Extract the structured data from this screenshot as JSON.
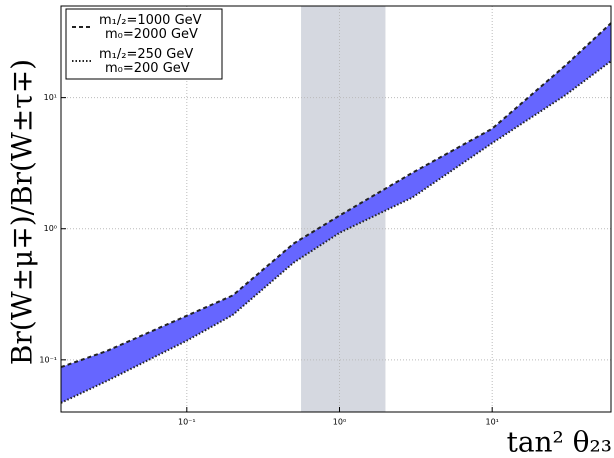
{
  "chart_data": {
    "type": "band",
    "xlabel": "tan² θ₂₃",
    "ylabel": "Br(W±μ∓)/Br(W±τ∓)",
    "x": [
      0.015,
      0.03,
      0.1,
      0.2,
      0.5,
      1,
      3,
      10,
      30,
      60
    ],
    "series": [
      {
        "name": "m₁/₂=1000 GeV\nm₀=2000 GeV",
        "style": "dashed",
        "color": "#222222",
        "values": [
          0.088,
          0.117,
          0.217,
          0.31,
          0.77,
          1.26,
          2.67,
          5.8,
          17.5,
          37
        ]
      },
      {
        "name": "m₁/₂=250 GeV\nm₀=200 GeV",
        "style": "dotted",
        "color": "#222222",
        "values": [
          0.047,
          0.069,
          0.14,
          0.22,
          0.55,
          0.93,
          1.73,
          4.5,
          10.4,
          19
        ]
      }
    ],
    "band_color": "#6666ff",
    "shaded_xrange": [
      0.56,
      2.0
    ],
    "shade_color": "#d5d8e0",
    "xscale": "log",
    "yscale": "log",
    "xlim": [
      0.015,
      60
    ],
    "ylim": [
      0.04,
      50
    ],
    "xticks": [
      {
        "value": 0.1,
        "label": "10⁻¹"
      },
      {
        "value": 1,
        "label": "10⁰"
      },
      {
        "value": 10,
        "label": "10¹"
      }
    ],
    "yticks": [
      {
        "value": 0.1,
        "label": "10⁻¹"
      },
      {
        "value": 1,
        "label": "10⁰"
      },
      {
        "value": 10,
        "label": "10¹"
      }
    ],
    "grid": true,
    "legend": "upper left"
  }
}
